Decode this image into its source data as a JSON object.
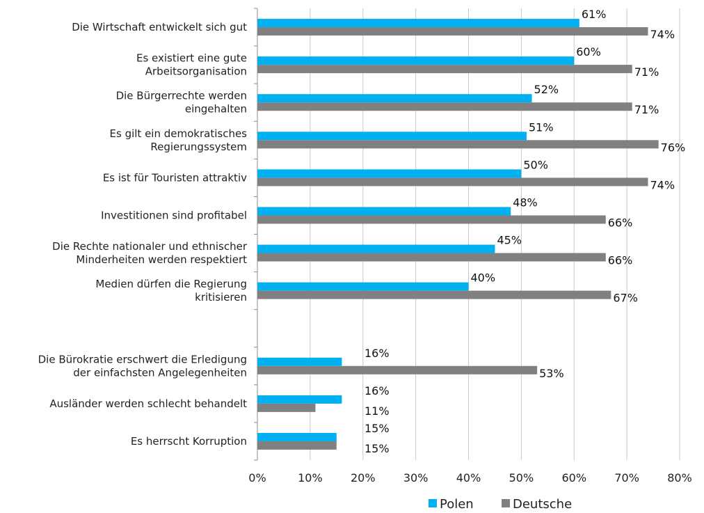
{
  "chart_data": {
    "type": "bar",
    "orientation": "horizontal",
    "categories": [
      "Die Wirtschaft entwickelt sich gut",
      "Es existiert eine gute\nArbeitsorganisation",
      "Die Bürgerrechte werden\neingehalten",
      "Es gilt ein demokratisches\nRegierungssystem",
      "Es ist für Touristen attraktiv",
      "Investitionen sind profitabel",
      "Die Rechte nationaler und ethnischer\nMinderheiten werden respektiert",
      "Medien dürfen die Regierung\nkritisieren",
      "",
      "Die Bürokratie erschwert die Erledigung\nder einfachsten Angelegenheiten",
      "Ausländer werden schlecht behandelt",
      "Es herrscht Korruption"
    ],
    "series": [
      {
        "name": "Polen",
        "color": "#00b0f0",
        "values": [
          61,
          60,
          52,
          51,
          50,
          48,
          45,
          40,
          null,
          16,
          16,
          15
        ]
      },
      {
        "name": "Deutsche",
        "color": "#808080",
        "values": [
          74,
          71,
          71,
          76,
          74,
          66,
          66,
          67,
          null,
          53,
          11,
          15
        ]
      }
    ],
    "x_ticks": [
      "0%",
      "10%",
      "20%",
      "30%",
      "40%",
      "50%",
      "60%",
      "70%",
      "80%"
    ],
    "xlim": [
      0,
      80
    ],
    "value_suffix": "%",
    "grid": true,
    "legend": "bottom"
  }
}
